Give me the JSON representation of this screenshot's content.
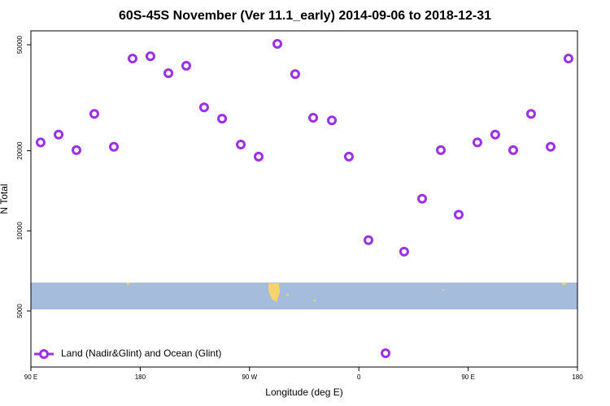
{
  "chart_data": {
    "type": "scatter",
    "title": "60S-45S November (Ver 11.1_early)   2014-09-06 to 2018-12-31",
    "xlabel": "Longitude (deg E)",
    "ylabel": "N Total",
    "xlim": [
      90,
      540
    ],
    "xticks": [
      {
        "value": 90,
        "label": "90 E"
      },
      {
        "value": 180,
        "label": "180"
      },
      {
        "value": 270,
        "label": "90 W"
      },
      {
        "value": 360,
        "label": "0"
      },
      {
        "value": 450,
        "label": "90 E"
      },
      {
        "value": 540,
        "label": "180"
      }
    ],
    "ylim": [
      3080,
      56400
    ],
    "yticks": [
      5000,
      10000,
      20000,
      50000
    ],
    "log_y": true,
    "legend": "bottom-left",
    "series": [
      {
        "name": "Land (Nadir&Glint) and Ocean (Glint)",
        "color": "#9b30e8",
        "x": [
          98,
          112.8,
          127.5,
          142.2,
          158.3,
          173.7,
          188.4,
          203.2,
          217.9,
          232.6,
          247.4,
          262.8,
          277.5,
          292.9,
          307.6,
          322.4,
          337.8,
          351.8,
          367.9,
          382,
          397.3,
          412.1,
          427.5,
          442.2,
          457.6,
          472.3,
          487.1,
          501.8,
          517.9,
          532.6
        ],
        "values": [
          21500,
          23000,
          20100,
          27500,
          20700,
          44400,
          45300,
          39100,
          41700,
          29100,
          26400,
          21100,
          19000,
          50400,
          38800,
          26600,
          26000,
          19000,
          9230,
          3470,
          8360,
          13200,
          20100,
          11500,
          21500,
          23000,
          20100,
          27500,
          20700,
          44400
        ]
      }
    ]
  }
}
